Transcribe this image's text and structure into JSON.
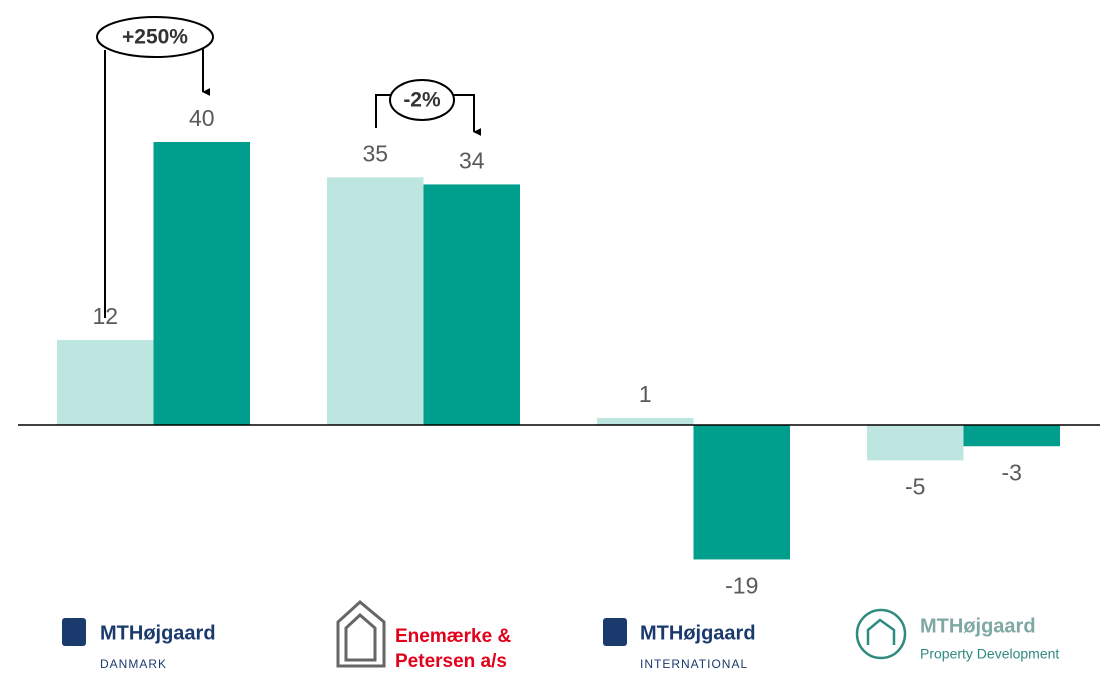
{
  "chart_data": {
    "type": "bar",
    "categories": [
      [
        "MTHøjgaard",
        "DANMARK"
      ],
      [
        "Enemærke &",
        "Petersen a/s"
      ],
      [
        "MTHøjgaard",
        "INTERNATIONAL"
      ],
      [
        "MTHøjgaard",
        "Property Development"
      ]
    ],
    "series": [
      {
        "color": "#bde6e1",
        "values": [
          12,
          35,
          1,
          -5
        ]
      },
      {
        "color": "#009e8c",
        "values": [
          40,
          34,
          -19,
          -3
        ]
      }
    ],
    "ylim": [
      -25,
      45
    ],
    "annotations": [
      "+250%",
      "-2%"
    ]
  }
}
